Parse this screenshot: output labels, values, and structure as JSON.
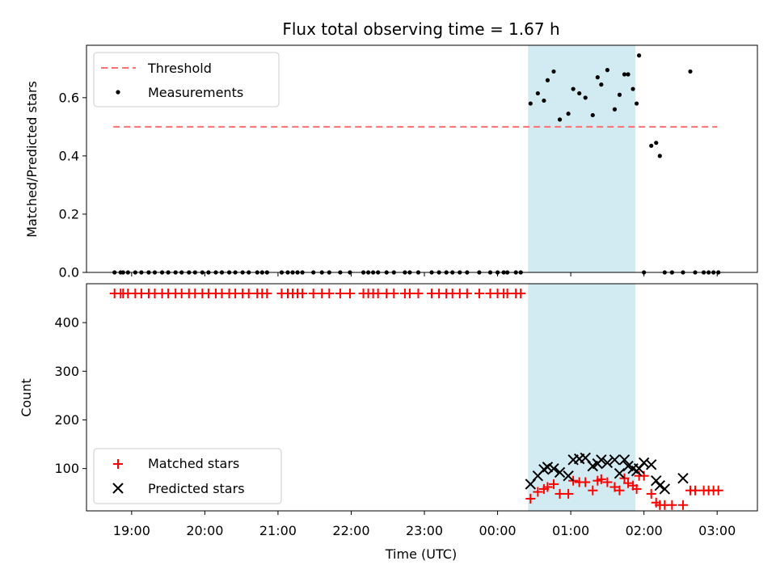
{
  "chart_data": {
    "type": "scatter",
    "title": "Flux total observing time = 1.67 h",
    "x_format": "HH:MM",
    "x_range": [
      "18:23",
      "03:33"
    ],
    "x_ticks": [
      "19:00",
      "20:00",
      "21:00",
      "22:00",
      "23:00",
      "00:00",
      "01:00",
      "02:00",
      "03:00"
    ],
    "xlabel": "Time (UTC)",
    "shaded_interval": {
      "start": "00:25",
      "end": "01:53",
      "color": "#add8e6"
    },
    "top": {
      "ylabel": "Matched/Predicted stars",
      "ylim": [
        0,
        0.78
      ],
      "yticks": [
        0.0,
        0.2,
        0.4,
        0.6
      ],
      "legend_position": "upper-left",
      "threshold": {
        "name": "Threshold",
        "value": 0.5,
        "x_start": "18:45",
        "x_end": "03:00",
        "color": "#ff7070"
      },
      "measurements": {
        "name": "Measurements",
        "color": "#000000",
        "x": [
          "18:46",
          "18:51",
          "18:53",
          "18:57",
          "19:03",
          "19:08",
          "19:14",
          "19:19",
          "19:25",
          "19:30",
          "19:36",
          "19:41",
          "19:47",
          "19:52",
          "19:58",
          "20:03",
          "20:09",
          "20:14",
          "20:20",
          "20:25",
          "20:31",
          "20:36",
          "20:43",
          "20:47",
          "20:51",
          "21:03",
          "21:08",
          "21:12",
          "21:16",
          "21:20",
          "21:29",
          "21:36",
          "21:42",
          "21:51",
          "21:59",
          "22:10",
          "22:14",
          "22:18",
          "22:22",
          "22:29",
          "22:35",
          "22:44",
          "22:48",
          "22:55",
          "23:06",
          "23:12",
          "23:18",
          "23:23",
          "23:29",
          "23:35",
          "23:45",
          "23:54",
          "24:00",
          "24:05",
          "24:08",
          "24:15",
          "24:19",
          "24:27",
          "24:33",
          "24:38",
          "24:41",
          "24:46",
          "24:51",
          "24:58",
          "25:02",
          "25:07",
          "25:12",
          "25:18",
          "25:22",
          "25:25",
          "25:30",
          "25:36",
          "25:40",
          "25:44",
          "25:47",
          "25:51",
          "25:54",
          "25:56",
          "26:00",
          "26:06",
          "26:10",
          "26:13",
          "26:17",
          "26:23",
          "26:32",
          "26:38",
          "26:42",
          "26:49",
          "26:53",
          "26:57",
          "27:01"
        ],
        "y": [
          0,
          0,
          0,
          0,
          0,
          0,
          0,
          0,
          0,
          0,
          0,
          0,
          0,
          0,
          0,
          0,
          0,
          0,
          0,
          0,
          0,
          0,
          0,
          0,
          0,
          0,
          0,
          0,
          0,
          0,
          0,
          0,
          0,
          0,
          0,
          0,
          0,
          0,
          0,
          0,
          0,
          0,
          0,
          0,
          0,
          0,
          0,
          0,
          0,
          0,
          0,
          0,
          0,
          0,
          0,
          0,
          0,
          0.58,
          0.615,
          0.59,
          0.66,
          0.69,
          0.525,
          0.545,
          0.63,
          0.615,
          0.6,
          0.54,
          0.67,
          0.645,
          0.695,
          0.56,
          0.61,
          0.68,
          0.68,
          0.63,
          0.58,
          0.745,
          0,
          0.435,
          0.445,
          0.4,
          0,
          0,
          0,
          0.69,
          0,
          0,
          0,
          0,
          0
        ]
      }
    },
    "bottom": {
      "ylabel": "Count",
      "ylim": [
        13,
        480
      ],
      "yticks": [
        100,
        200,
        300,
        400
      ],
      "legend_position": "lower-left",
      "matched": {
        "name": "Matched stars",
        "color": "#ff0000",
        "x": [
          "18:46",
          "18:51",
          "18:53",
          "18:57",
          "19:03",
          "19:08",
          "19:14",
          "19:19",
          "19:25",
          "19:30",
          "19:36",
          "19:41",
          "19:47",
          "19:52",
          "19:58",
          "20:03",
          "20:09",
          "20:14",
          "20:20",
          "20:25",
          "20:31",
          "20:36",
          "20:43",
          "20:47",
          "20:51",
          "21:03",
          "21:08",
          "21:12",
          "21:16",
          "21:20",
          "21:29",
          "21:36",
          "21:42",
          "21:51",
          "21:59",
          "22:10",
          "22:14",
          "22:18",
          "22:22",
          "22:29",
          "22:35",
          "22:44",
          "22:48",
          "22:55",
          "23:06",
          "23:12",
          "23:18",
          "23:23",
          "23:29",
          "23:35",
          "23:45",
          "23:54",
          "24:00",
          "24:05",
          "24:08",
          "24:15",
          "24:19",
          "24:27",
          "24:33",
          "24:38",
          "24:41",
          "24:46",
          "24:51",
          "24:58",
          "25:02",
          "25:07",
          "25:12",
          "25:18",
          "25:22",
          "25:25",
          "25:30",
          "25:36",
          "25:40",
          "25:44",
          "25:47",
          "25:51",
          "25:54",
          "25:56",
          "26:00",
          "26:06",
          "26:10",
          "26:13",
          "26:17",
          "26:23",
          "26:32",
          "26:38",
          "26:42",
          "26:49",
          "26:53",
          "26:57",
          "27:01"
        ],
        "y": [
          460,
          460,
          460,
          460,
          460,
          460,
          460,
          460,
          460,
          460,
          460,
          460,
          460,
          460,
          460,
          460,
          460,
          460,
          460,
          460,
          460,
          460,
          460,
          460,
          460,
          460,
          460,
          460,
          460,
          460,
          460,
          460,
          460,
          460,
          460,
          460,
          460,
          460,
          460,
          460,
          460,
          460,
          460,
          460,
          460,
          460,
          460,
          460,
          460,
          460,
          460,
          460,
          460,
          460,
          460,
          460,
          460,
          38,
          52,
          58,
          62,
          68,
          48,
          48,
          75,
          72,
          72,
          55,
          75,
          78,
          72,
          62,
          55,
          80,
          70,
          65,
          58,
          85,
          85,
          48,
          30,
          25,
          25,
          25,
          25,
          55,
          55,
          55,
          55,
          55,
          55
        ]
      },
      "predicted": {
        "name": "Predicted stars",
        "color": "#000000",
        "x": [
          "24:27",
          "24:33",
          "24:38",
          "24:41",
          "24:46",
          "24:51",
          "24:58",
          "25:02",
          "25:07",
          "25:12",
          "25:18",
          "25:22",
          "25:25",
          "25:30",
          "25:36",
          "25:40",
          "25:44",
          "25:47",
          "25:51",
          "25:54",
          "25:56",
          "26:00",
          "26:06",
          "26:10",
          "26:13",
          "26:17",
          "26:32"
        ],
        "y": [
          68,
          85,
          98,
          103,
          100,
          92,
          85,
          118,
          120,
          122,
          105,
          110,
          118,
          112,
          118,
          90,
          118,
          105,
          100,
          95,
          100,
          112,
          108,
          75,
          65,
          58,
          80
        ]
      }
    }
  }
}
